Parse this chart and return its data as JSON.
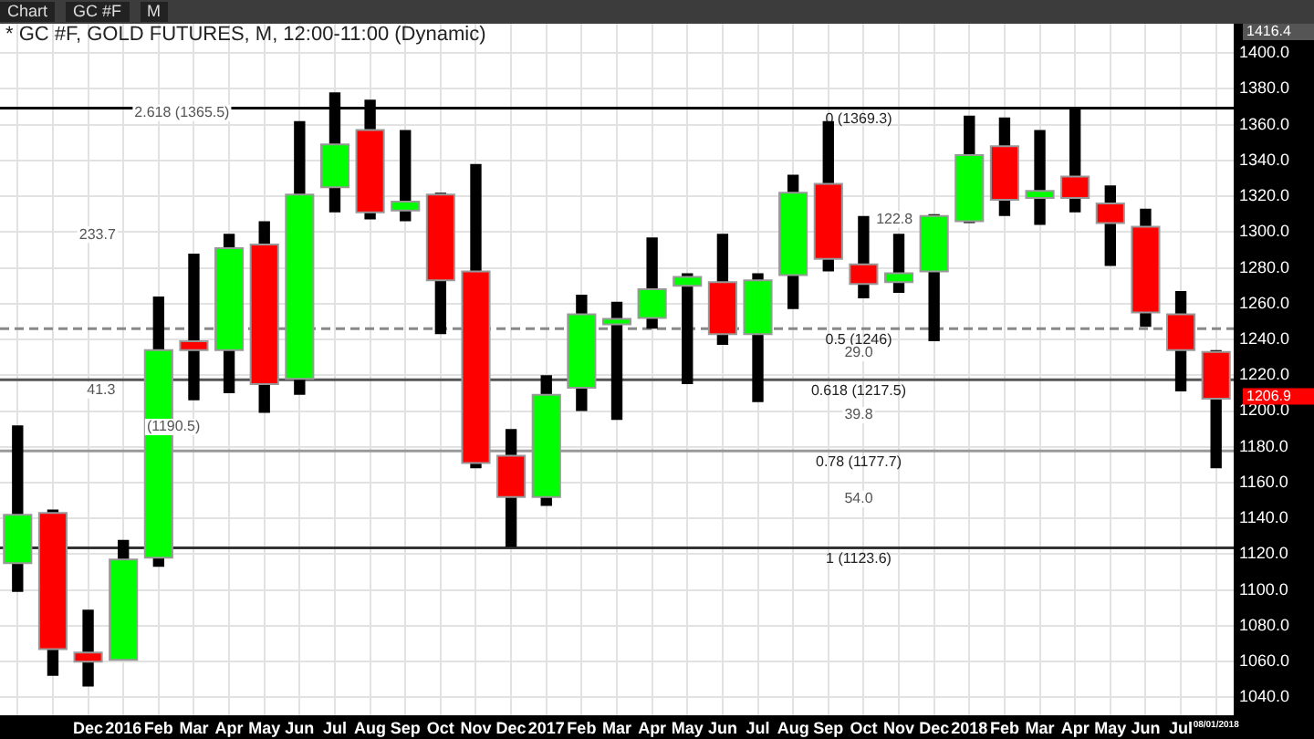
{
  "chart_data": {
    "type": "candlestick",
    "title": "* GC #F, GOLD FUTURES, M, 12:00-11:00 (Dynamic)",
    "categories": [
      null,
      null,
      "Dec",
      "2016",
      "Feb",
      "Mar",
      "Apr",
      "May",
      "Jun",
      "Jul",
      "Aug",
      "Sep",
      "Oct",
      "Nov",
      "Dec",
      "2017",
      "Feb",
      "Mar",
      "Apr",
      "May",
      "Jun",
      "Jul",
      "Aug",
      "Sep",
      "Oct",
      "Nov",
      "Dec",
      "2018",
      "Feb",
      "Mar",
      "Apr",
      "May",
      "Jun",
      "Jul",
      "08/01/2018"
    ],
    "ohlc": [
      [
        1115,
        1192,
        1099,
        1142
      ],
      [
        1143,
        1145,
        1052,
        1067
      ],
      [
        1065,
        1089,
        1046,
        1060
      ],
      [
        1061,
        1128,
        1061,
        1117
      ],
      [
        1118,
        1264,
        1113,
        1234
      ],
      [
        1239,
        1288,
        1206,
        1234
      ],
      [
        1234,
        1299,
        1210,
        1291
      ],
      [
        1293,
        1306,
        1199,
        1215
      ],
      [
        1218,
        1362,
        1209,
        1321
      ],
      [
        1325,
        1378,
        1311,
        1349
      ],
      [
        1357,
        1374,
        1307,
        1311
      ],
      [
        1312,
        1357,
        1306,
        1317
      ],
      [
        1321,
        1322,
        1243,
        1273
      ],
      [
        1278,
        1338,
        1168,
        1171
      ],
      [
        1175,
        1190,
        1124,
        1152
      ],
      [
        1152,
        1220,
        1147,
        1209
      ],
      [
        1213,
        1265,
        1200,
        1254
      ],
      [
        1249,
        1261,
        1195,
        1251
      ],
      [
        1252,
        1297,
        1246,
        1268
      ],
      [
        1270,
        1277,
        1215,
        1275
      ],
      [
        1272,
        1299,
        1237,
        1243
      ],
      [
        1243,
        1277,
        1205,
        1273
      ],
      [
        1276,
        1332,
        1257,
        1322
      ],
      [
        1327,
        1362,
        1278,
        1285
      ],
      [
        1282,
        1309,
        1263,
        1271
      ],
      [
        1272,
        1299,
        1266,
        1277
      ],
      [
        1278,
        1310,
        1239,
        1309
      ],
      [
        1306,
        1365,
        1305,
        1343
      ],
      [
        1348,
        1364,
        1309,
        1318
      ],
      [
        1319,
        1357,
        1304,
        1323
      ],
      [
        1331,
        1369,
        1311,
        1319
      ],
      [
        1316,
        1326,
        1281,
        1305
      ],
      [
        1303,
        1313,
        1247,
        1255
      ],
      [
        1254,
        1267,
        1211,
        1234
      ],
      [
        1233,
        1234,
        1168,
        1206.9
      ]
    ],
    "colors": [
      "#00ff00",
      "#ff0000",
      "#ff0000",
      "#00ff00",
      "#00ff00",
      "#ff0000",
      "#00ff00",
      "#ff0000",
      "#00ff00",
      "#00ff00",
      "#ff0000",
      "#00ff00",
      "#ff0000",
      "#ff0000",
      "#ff0000",
      "#00ff00",
      "#00ff00",
      "#00ff00",
      "#00ff00",
      "#00ff00",
      "#ff0000",
      "#00ff00",
      "#00ff00",
      "#ff0000",
      "#ff0000",
      "#00ff00",
      "#00ff00",
      "#00ff00",
      "#ff0000",
      "#00ff00",
      "#ff0000",
      "#ff0000",
      "#ff0000",
      "#ff0000",
      "#ff0000"
    ],
    "ylim": [
      1030,
      1416.4
    ],
    "yticks": [
      {
        "value": 1040,
        "label": "1040.0"
      },
      {
        "value": 1060,
        "label": "1060.0"
      },
      {
        "value": 1080,
        "label": "1080.0"
      },
      {
        "value": 1100,
        "label": "1100.0"
      },
      {
        "value": 1120,
        "label": "1120.0"
      },
      {
        "value": 1140,
        "label": "1140.0"
      },
      {
        "value": 1160,
        "label": "1160.0"
      },
      {
        "value": 1180,
        "label": "1180.0"
      },
      {
        "value": 1200,
        "label": "1200.0"
      },
      {
        "value": 1220,
        "label": "1220.0"
      },
      {
        "value": 1240,
        "label": "1240.0"
      },
      {
        "value": 1260,
        "label": "1260.0"
      },
      {
        "value": 1280,
        "label": "1280.0"
      },
      {
        "value": 1300,
        "label": "1300.0"
      },
      {
        "value": 1320,
        "label": "1320.0"
      },
      {
        "value": 1340,
        "label": "1340.0"
      },
      {
        "value": 1360,
        "label": "1360.0"
      },
      {
        "value": 1380,
        "label": "1380.0"
      },
      {
        "value": 1400,
        "label": "1400.0"
      }
    ],
    "grid": true,
    "ref_lines": [
      {
        "axis": "y",
        "value": 1369.3,
        "label": "0 (1369.3)",
        "color": "#000000"
      },
      {
        "axis": "y",
        "value": 1246,
        "label": "0.5 (1246)",
        "color": "#888888",
        "line_style": "dashed"
      },
      {
        "axis": "y",
        "value": 1217.5,
        "label": "0.618 (1217.5)",
        "color": "#555555"
      },
      {
        "axis": "y",
        "value": 1177.7,
        "label": "0.78 (1177.7)",
        "color": "#999999"
      },
      {
        "axis": "y",
        "value": 1123.6,
        "label": "1 (1123.6)",
        "color": "#333333"
      }
    ],
    "annotations": [
      "Chart",
      "GC #F",
      "M",
      "2.618 (1365.5)",
      "233.7",
      "41.3",
      "(1190.5)",
      "122.8",
      "29.0",
      "39.8",
      "54.0",
      "1206.9",
      "1416.4"
    ]
  }
}
